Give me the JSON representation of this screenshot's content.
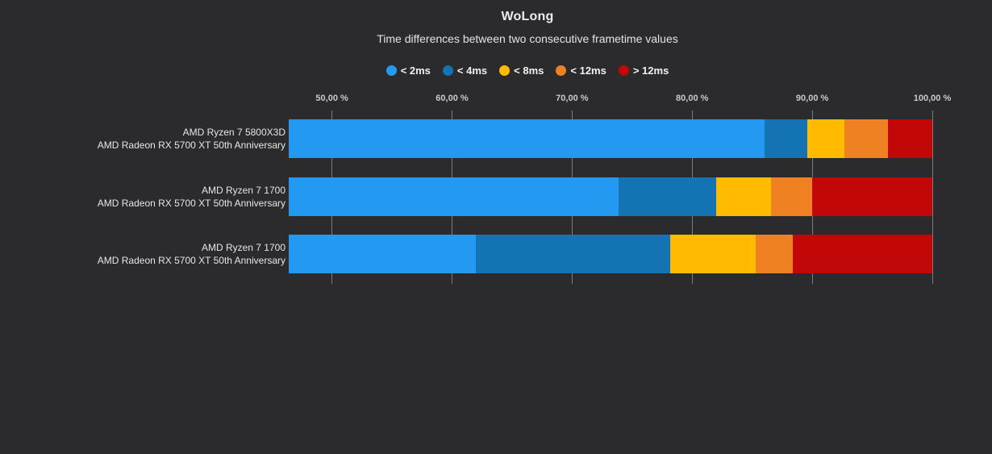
{
  "chart_data": {
    "type": "bar",
    "orientation": "horizontal",
    "stacked": true,
    "title": "WoLong",
    "subtitle": "Time differences between two consecutive frametime values",
    "legend": {
      "position": "top",
      "items": [
        {
          "label": "< 2ms",
          "color": "#2499F2"
        },
        {
          "label": "< 4ms",
          "color": "#1373B3"
        },
        {
          "label": "< 8ms",
          "color": "#FFBB00"
        },
        {
          "label": "< 12ms",
          "color": "#F08122"
        },
        {
          "label": "> 12ms",
          "color": "#C20708"
        }
      ]
    },
    "x_axis": {
      "unit": "%",
      "min": 46.4,
      "max": 100,
      "grid": true,
      "ticks": [
        50,
        60,
        70,
        80,
        90,
        100
      ],
      "tick_labels": [
        "50,00 %",
        "60,00 %",
        "70,00 %",
        "80,00 %",
        "90,00 %",
        "100,00 %"
      ]
    },
    "categories": [
      [
        "AMD Ryzen 7 5800X3D",
        "AMD Radeon RX 5700 XT 50th Anniversary"
      ],
      [
        "AMD Ryzen 7 1700",
        "AMD Radeon RX 5700 XT 50th Anniversary"
      ],
      [
        "AMD Ryzen 7 1700",
        "AMD Radeon RX 5700 XT 50th Anniversary"
      ]
    ],
    "bars": [
      {
        "cumulative": [
          86.0,
          89.6,
          92.7,
          96.3,
          100
        ],
        "segments": [
          86.0,
          3.6,
          3.1,
          3.6,
          3.7
        ]
      },
      {
        "cumulative": [
          73.9,
          82.0,
          86.6,
          90.0,
          100
        ],
        "segments": [
          73.9,
          8.1,
          4.6,
          3.4,
          10.0
        ]
      },
      {
        "cumulative": [
          62.0,
          78.2,
          85.3,
          88.4,
          100
        ],
        "segments": [
          62.0,
          16.2,
          7.1,
          3.1,
          11.6
        ]
      }
    ]
  },
  "theme": {
    "background": "#2B2B2E",
    "grid_color": "#7A7A80",
    "title_color": "#ECECEC",
    "subtitle_color": "#E4E4E4",
    "tick_text_color": "#C9C9CC",
    "category_text_color": "#E6E6E6",
    "legend_text_color": "#F0F0F0"
  }
}
